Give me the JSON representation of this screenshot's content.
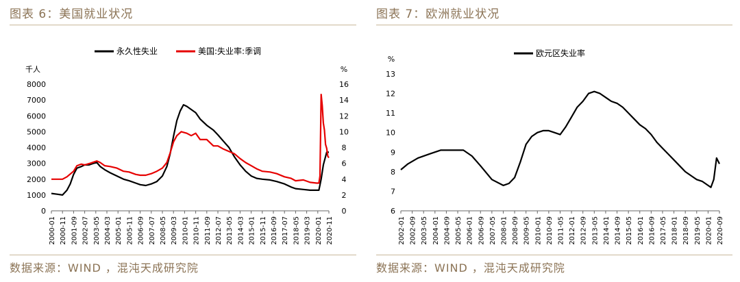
{
  "left": {
    "fig_title": "图表 6：美国就业状况",
    "source": "数据来源：WIND ，混沌天成研究院"
  },
  "right": {
    "fig_title": "图表 7：欧洲就业状况",
    "source": "数据来源：WIND ，混沌天成研究院"
  },
  "chart_data": [
    {
      "type": "line",
      "title": "",
      "ylabel": "千人",
      "y2label": "%",
      "ylim": [
        0,
        8000
      ],
      "y2lim": [
        0,
        16
      ],
      "yticks": [
        "0",
        "1000",
        "2000",
        "3000",
        "4000",
        "5000",
        "6000",
        "7000",
        "8000"
      ],
      "y2ticks": [
        "0",
        "2",
        "4",
        "6",
        "8",
        "10",
        "12",
        "14",
        "16"
      ],
      "xticks": [
        "2000-01",
        "2000-11",
        "2001-09",
        "2002-07",
        "2003-05",
        "2004-03",
        "2005-01",
        "2005-11",
        "2006-09",
        "2007-07",
        "2008-05",
        "2009-03",
        "2010-01",
        "2010-11",
        "2011-09",
        "2012-07",
        "2013-05",
        "2014-03",
        "2015-01",
        "2015-11",
        "2016-09",
        "2017-07",
        "2018-05",
        "2019-03",
        "2020-01",
        "2020-11"
      ],
      "legend_position": "top",
      "series": [
        {
          "name": "永久性失业",
          "axis": "left",
          "color": "#000000",
          "points": [
            [
              "2000-01",
              1100
            ],
            [
              "2000-06",
              1050
            ],
            [
              "2000-11",
              1000
            ],
            [
              "2001-03",
              1300
            ],
            [
              "2001-06",
              1700
            ],
            [
              "2001-09",
              2300
            ],
            [
              "2001-12",
              2700
            ],
            [
              "2002-04",
              2800
            ],
            [
              "2002-07",
              2900
            ],
            [
              "2002-11",
              2900
            ],
            [
              "2003-03",
              3000
            ],
            [
              "2003-06",
              3050
            ],
            [
              "2003-09",
              2800
            ],
            [
              "2004-01",
              2600
            ],
            [
              "2004-06",
              2400
            ],
            [
              "2004-12",
              2200
            ],
            [
              "2005-06",
              2000
            ],
            [
              "2005-11",
              1900
            ],
            [
              "2006-05",
              1750
            ],
            [
              "2006-09",
              1650
            ],
            [
              "2007-02",
              1600
            ],
            [
              "2007-07",
              1700
            ],
            [
              "2007-12",
              1850
            ],
            [
              "2008-05",
              2200
            ],
            [
              "2008-09",
              2800
            ],
            [
              "2008-12",
              3600
            ],
            [
              "2009-03",
              4700
            ],
            [
              "2009-06",
              5700
            ],
            [
              "2009-09",
              6300
            ],
            [
              "2009-12",
              6700
            ],
            [
              "2010-03",
              6600
            ],
            [
              "2010-07",
              6400
            ],
            [
              "2010-11",
              6200
            ],
            [
              "2011-03",
              5800
            ],
            [
              "2011-09",
              5400
            ],
            [
              "2012-03",
              5100
            ],
            [
              "2012-07",
              4800
            ],
            [
              "2012-12",
              4400
            ],
            [
              "2013-05",
              4000
            ],
            [
              "2013-10",
              3400
            ],
            [
              "2014-03",
              2900
            ],
            [
              "2014-08",
              2500
            ],
            [
              "2015-01",
              2200
            ],
            [
              "2015-06",
              2050
            ],
            [
              "2015-11",
              2000
            ],
            [
              "2016-06",
              1950
            ],
            [
              "2016-12",
              1850
            ],
            [
              "2017-07",
              1700
            ],
            [
              "2018-01",
              1500
            ],
            [
              "2018-05",
              1400
            ],
            [
              "2018-12",
              1350
            ],
            [
              "2019-06",
              1300
            ],
            [
              "2019-12",
              1300
            ],
            [
              "2020-02",
              1300
            ],
            [
              "2020-04",
              2000
            ],
            [
              "2020-06",
              2900
            ],
            [
              "2020-09",
              3700
            ],
            [
              "2020-11",
              3700
            ]
          ]
        },
        {
          "name": "美国:失业率:季调",
          "axis": "right",
          "color": "#e60000",
          "points": [
            [
              "2000-01",
              4.0
            ],
            [
              "2000-06",
              4.0
            ],
            [
              "2000-11",
              4.0
            ],
            [
              "2001-03",
              4.3
            ],
            [
              "2001-09",
              5.0
            ],
            [
              "2001-12",
              5.7
            ],
            [
              "2002-04",
              5.9
            ],
            [
              "2002-07",
              5.8
            ],
            [
              "2002-12",
              6.0
            ],
            [
              "2003-06",
              6.3
            ],
            [
              "2003-09",
              6.1
            ],
            [
              "2004-01",
              5.7
            ],
            [
              "2004-06",
              5.6
            ],
            [
              "2004-12",
              5.4
            ],
            [
              "2005-06",
              5.0
            ],
            [
              "2005-11",
              4.9
            ],
            [
              "2006-05",
              4.6
            ],
            [
              "2006-09",
              4.5
            ],
            [
              "2007-02",
              4.5
            ],
            [
              "2007-07",
              4.7
            ],
            [
              "2007-12",
              5.0
            ],
            [
              "2008-05",
              5.4
            ],
            [
              "2008-09",
              6.1
            ],
            [
              "2008-12",
              7.3
            ],
            [
              "2009-03",
              8.7
            ],
            [
              "2009-06",
              9.5
            ],
            [
              "2009-10",
              10.0
            ],
            [
              "2010-03",
              9.8
            ],
            [
              "2010-07",
              9.5
            ],
            [
              "2010-11",
              9.8
            ],
            [
              "2011-03",
              9.0
            ],
            [
              "2011-09",
              9.0
            ],
            [
              "2012-03",
              8.2
            ],
            [
              "2012-07",
              8.2
            ],
            [
              "2012-12",
              7.8
            ],
            [
              "2013-05",
              7.5
            ],
            [
              "2013-10",
              7.2
            ],
            [
              "2014-03",
              6.6
            ],
            [
              "2014-08",
              6.1
            ],
            [
              "2015-01",
              5.7
            ],
            [
              "2015-06",
              5.3
            ],
            [
              "2015-11",
              5.0
            ],
            [
              "2016-06",
              4.9
            ],
            [
              "2016-12",
              4.7
            ],
            [
              "2017-07",
              4.3
            ],
            [
              "2018-01",
              4.1
            ],
            [
              "2018-05",
              3.8
            ],
            [
              "2018-12",
              3.9
            ],
            [
              "2019-06",
              3.6
            ],
            [
              "2019-12",
              3.5
            ],
            [
              "2020-02",
              3.5
            ],
            [
              "2020-03",
              4.4
            ],
            [
              "2020-04",
              14.7
            ],
            [
              "2020-05",
              13.3
            ],
            [
              "2020-06",
              11.1
            ],
            [
              "2020-07",
              10.2
            ],
            [
              "2020-08",
              8.4
            ],
            [
              "2020-09",
              7.9
            ],
            [
              "2020-10",
              6.9
            ],
            [
              "2020-11",
              6.7
            ]
          ]
        }
      ]
    },
    {
      "type": "line",
      "title": "",
      "ylabel": "%",
      "ylim": [
        6,
        13
      ],
      "yticks": [
        "6",
        "7",
        "8",
        "9",
        "10",
        "11",
        "12",
        "13"
      ],
      "xticks": [
        "2002-01",
        "2002-09",
        "2003-05",
        "2004-01",
        "2004-09",
        "2005-05",
        "2006-01",
        "2006-09",
        "2007-05",
        "2008-01",
        "2008-09",
        "2009-05",
        "2010-01",
        "2010-09",
        "2011-05",
        "2012-01",
        "2012-09",
        "2013-05",
        "2014-01",
        "2014-09",
        "2015-05",
        "2016-01",
        "2016-09",
        "2017-05",
        "2018-01",
        "2018-09",
        "2019-05",
        "2020-01",
        "2020-09"
      ],
      "legend_position": "top",
      "series": [
        {
          "name": "欧元区失业率",
          "color": "#000000",
          "points": [
            [
              "2002-01",
              8.1
            ],
            [
              "2002-06",
              8.4
            ],
            [
              "2003-01",
              8.7
            ],
            [
              "2003-09",
              8.9
            ],
            [
              "2004-05",
              9.1
            ],
            [
              "2005-03",
              9.1
            ],
            [
              "2005-09",
              9.1
            ],
            [
              "2006-03",
              8.8
            ],
            [
              "2006-09",
              8.3
            ],
            [
              "2007-05",
              7.6
            ],
            [
              "2008-01",
              7.3
            ],
            [
              "2008-05",
              7.4
            ],
            [
              "2008-09",
              7.7
            ],
            [
              "2009-01",
              8.5
            ],
            [
              "2009-05",
              9.4
            ],
            [
              "2009-09",
              9.8
            ],
            [
              "2010-01",
              10.0
            ],
            [
              "2010-05",
              10.1
            ],
            [
              "2010-09",
              10.1
            ],
            [
              "2011-01",
              10.0
            ],
            [
              "2011-05",
              9.9
            ],
            [
              "2011-09",
              10.3
            ],
            [
              "2012-01",
              10.8
            ],
            [
              "2012-05",
              11.3
            ],
            [
              "2012-09",
              11.6
            ],
            [
              "2013-01",
              12.0
            ],
            [
              "2013-05",
              12.1
            ],
            [
              "2013-09",
              12.0
            ],
            [
              "2014-01",
              11.8
            ],
            [
              "2014-05",
              11.6
            ],
            [
              "2014-09",
              11.5
            ],
            [
              "2015-01",
              11.3
            ],
            [
              "2015-05",
              11.0
            ],
            [
              "2015-09",
              10.7
            ],
            [
              "2016-01",
              10.4
            ],
            [
              "2016-05",
              10.2
            ],
            [
              "2016-09",
              9.9
            ],
            [
              "2017-01",
              9.5
            ],
            [
              "2017-05",
              9.2
            ],
            [
              "2017-09",
              8.9
            ],
            [
              "2018-01",
              8.6
            ],
            [
              "2018-05",
              8.3
            ],
            [
              "2018-09",
              8.0
            ],
            [
              "2019-01",
              7.8
            ],
            [
              "2019-05",
              7.6
            ],
            [
              "2019-09",
              7.5
            ],
            [
              "2020-01",
              7.3
            ],
            [
              "2020-03",
              7.2
            ],
            [
              "2020-05",
              7.6
            ],
            [
              "2020-07",
              8.7
            ],
            [
              "2020-09",
              8.4
            ]
          ]
        }
      ]
    }
  ]
}
